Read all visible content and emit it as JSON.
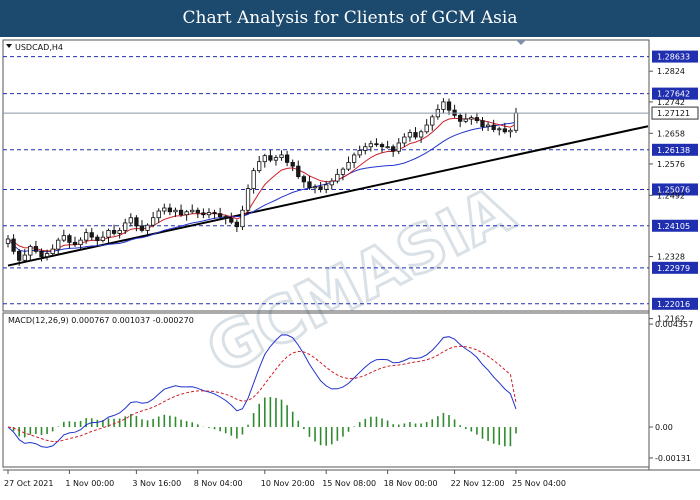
{
  "banner": {
    "title": "Chart Analysis for Clients of GCM Asia"
  },
  "watermark": "GCMASIA",
  "chart_data": [
    {
      "type": "candlestick",
      "symbol_label": "USDCAD,H4",
      "ylim": [
        1.2185,
        1.2905
      ],
      "y_ticks": [
        1.28633,
        1.28242,
        1.27642,
        1.2742,
        1.27121,
        1.2658,
        1.26138,
        1.2576,
        1.25076,
        1.2492,
        1.24105,
        1.2328,
        1.22979,
        1.22016,
        1.2162
      ],
      "current_price": 1.27121,
      "levels": [
        1.28633,
        1.27642,
        1.26138,
        1.25076,
        1.24105,
        1.22979,
        1.22016
      ],
      "trendline": {
        "start": {
          "x": "27 Oct 2021",
          "y": 1.2304
        },
        "end": {
          "x": "25 Nov 04:00",
          "y": 1.26
        }
      },
      "x_ticks": [
        "27 Oct 2021",
        "1 Nov 00:00",
        "3 Nov 16:00",
        "8 Nov 04:00",
        "10 Nov 20:00",
        "15 Nov 08:00",
        "18 Nov 00:00",
        "22 Nov 12:00",
        "25 Nov 04:00"
      ],
      "colors": {
        "up": "#ffffff",
        "down": "#1a1a1a",
        "ma_fast": "#d0202a",
        "ma_slow": "#2233cc",
        "level": "#1f2fb0",
        "trendline": "#000000"
      },
      "closes": [
        1.2375,
        1.2342,
        1.2318,
        1.2332,
        1.2355,
        1.2342,
        1.2328,
        1.2336,
        1.2348,
        1.2372,
        1.2384,
        1.2366,
        1.236,
        1.2372,
        1.2392,
        1.238,
        1.2371,
        1.238,
        1.2398,
        1.239,
        1.2398,
        1.2418,
        1.2432,
        1.241,
        1.2398,
        1.2412,
        1.2432,
        1.245,
        1.2458,
        1.2448,
        1.2452,
        1.244,
        1.2448,
        1.2452,
        1.2445,
        1.244,
        1.2446,
        1.2443,
        1.2435,
        1.243,
        1.242,
        1.2408,
        1.2452,
        1.251,
        1.2558,
        1.2582,
        1.2598,
        1.2586,
        1.2593,
        1.26,
        1.258,
        1.257,
        1.2542,
        1.2528,
        1.2512,
        1.2515,
        1.2508,
        1.252,
        1.253,
        1.2548,
        1.2562,
        1.258,
        1.26,
        1.2612,
        1.2622,
        1.263,
        1.2628,
        1.2622,
        1.2622,
        1.261,
        1.2632,
        1.2648,
        1.266,
        1.2648,
        1.2662,
        1.268,
        1.2702,
        1.2722,
        1.2742,
        1.272,
        1.2706,
        1.269,
        1.2696,
        1.27,
        1.2692,
        1.2676,
        1.268,
        1.2668,
        1.267,
        1.2662,
        1.2666,
        1.2712
      ]
    },
    {
      "type": "macd",
      "label": "MACD(12,26,9) 0.000767 0.001037 -0.000270",
      "params": [
        12,
        26,
        9
      ],
      "values": {
        "main": 0.000767,
        "signal": 0.001037,
        "histogram": -0.00027
      },
      "ylim": [
        -0.00165,
        0.0047
      ],
      "y_ticks": [
        0.004357,
        0.0,
        -0.00131
      ],
      "colors": {
        "main": "#2233cc",
        "signal": "#d0202a",
        "histogram": "#2e8b2e"
      }
    }
  ]
}
